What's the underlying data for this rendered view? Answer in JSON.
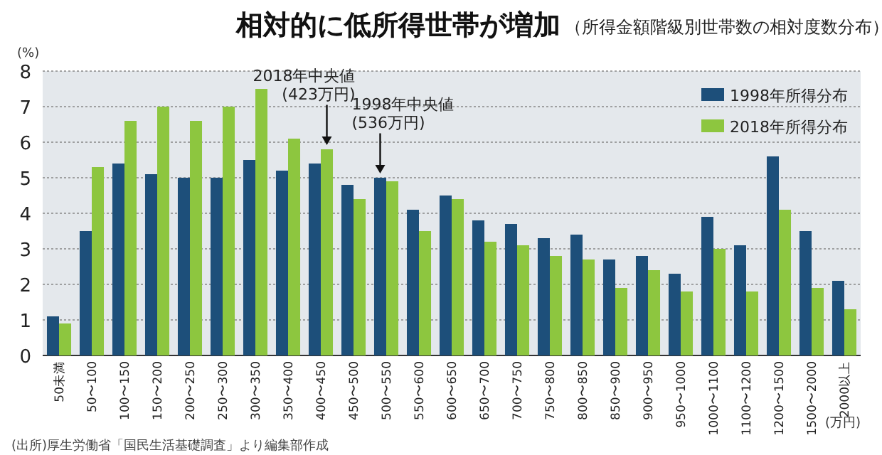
{
  "chart_data": {
    "type": "bar",
    "title": "相対的に低所得世帯が増加",
    "subtitle": "（所得金額階級別世帯数の相対度数分布）",
    "ylabel": "(%)",
    "xlabel": "(万円)",
    "categories": [
      "50未満",
      "50〜100",
      "100〜150",
      "150〜200",
      "200〜250",
      "250〜300",
      "300〜350",
      "350〜400",
      "400〜450",
      "450〜500",
      "500〜550",
      "550〜600",
      "600〜650",
      "650〜700",
      "700〜750",
      "750〜800",
      "800〜850",
      "850〜900",
      "900〜950",
      "950〜1000",
      "1000〜1100",
      "1100〜1200",
      "1200〜1500",
      "1500〜2000",
      "2000以上"
    ],
    "series": [
      {
        "name": "1998年所得分布",
        "color": "#1d4f7a",
        "values": [
          1.1,
          3.5,
          5.4,
          5.1,
          5.0,
          5.0,
          5.5,
          5.2,
          5.4,
          4.8,
          5.0,
          4.1,
          4.5,
          3.8,
          3.7,
          3.3,
          3.4,
          2.7,
          2.8,
          2.3,
          3.9,
          3.1,
          5.6,
          3.5,
          2.1
        ]
      },
      {
        "name": "2018年所得分布",
        "color": "#8dc63f",
        "values": [
          0.9,
          5.3,
          6.6,
          7.0,
          6.6,
          7.0,
          7.5,
          6.1,
          5.8,
          4.4,
          4.9,
          3.5,
          4.4,
          3.2,
          3.1,
          2.8,
          2.7,
          1.9,
          2.4,
          1.8,
          3.0,
          1.8,
          4.1,
          1.9,
          1.3
        ]
      }
    ],
    "ylim": [
      0,
      8
    ],
    "yticks": [
      0,
      1,
      2,
      3,
      4,
      5,
      6,
      7,
      8
    ],
    "grid": "y",
    "legend": "top right",
    "annotations": [
      {
        "text": "2018年中央値\n(423万円)",
        "x": "400〜450",
        "y": 5.8
      },
      {
        "text": "1998年中央値\n(536万円)",
        "x": "500〜550",
        "y": 5.0
      },
      "(出所)厚生労働省「国民生活基礎調査」より編集部作成"
    ]
  }
}
